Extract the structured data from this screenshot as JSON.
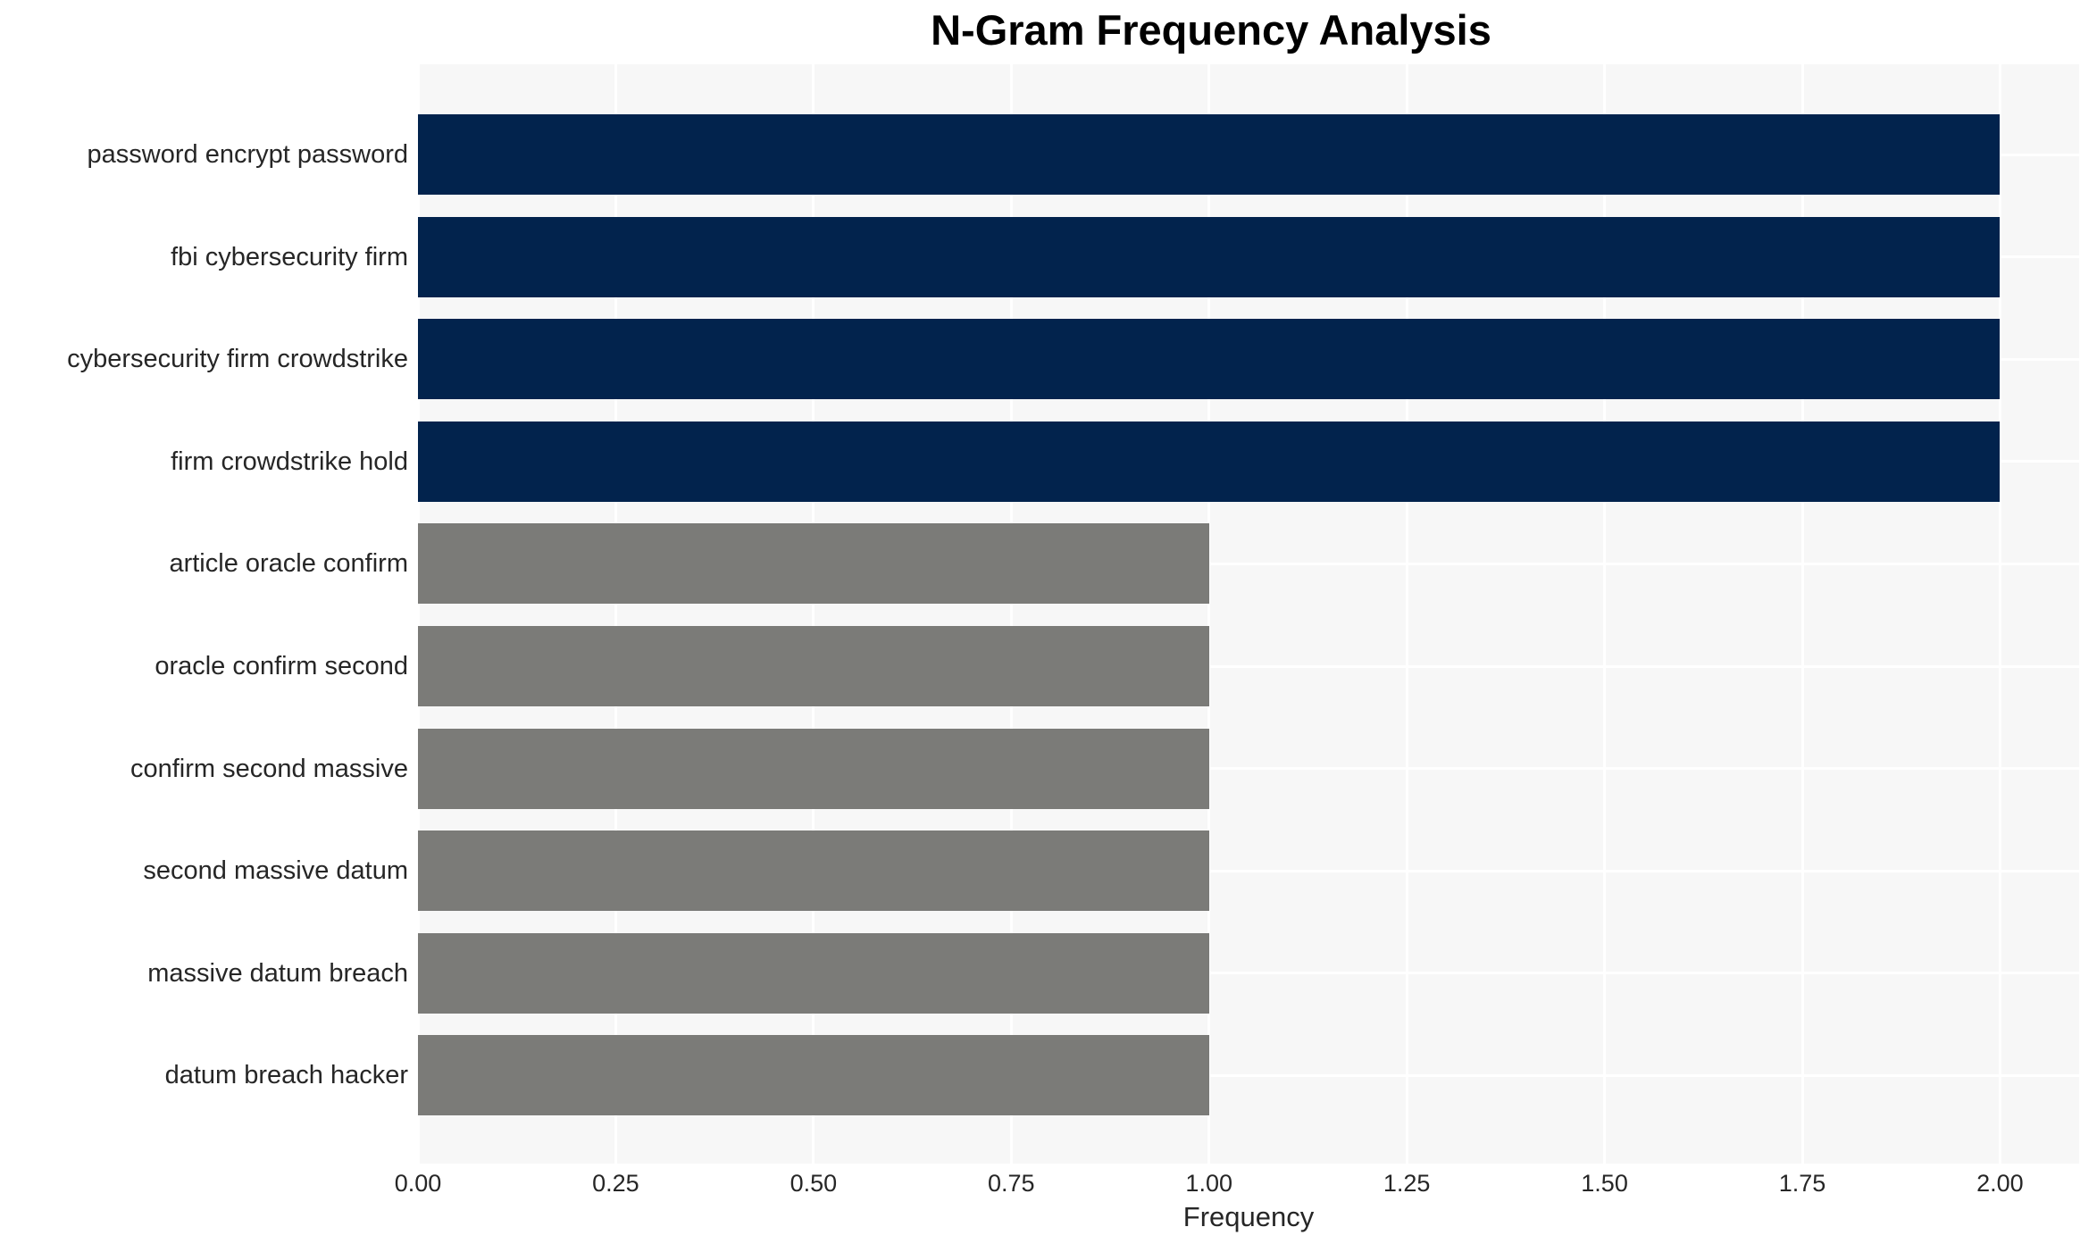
{
  "figure": {
    "background": "#ffffff",
    "text_color": "#262626",
    "title_color": "#000000"
  },
  "chart_data": {
    "type": "bar",
    "orientation": "horizontal",
    "title": "N-Gram Frequency Analysis",
    "xlabel": "Frequency",
    "ylabel": "",
    "categories": [
      "password encrypt password",
      "fbi cybersecurity firm",
      "cybersecurity firm crowdstrike",
      "firm crowdstrike hold",
      "article oracle confirm",
      "oracle confirm second",
      "confirm second massive",
      "second massive datum",
      "massive datum breach",
      "datum breach hacker"
    ],
    "values": [
      2,
      2,
      2,
      2,
      1,
      1,
      1,
      1,
      1,
      1
    ],
    "bar_colors": [
      "#02234d",
      "#02234d",
      "#02234d",
      "#02234d",
      "#7b7b78",
      "#7b7b78",
      "#7b7b78",
      "#7b7b78",
      "#7b7b78",
      "#7b7b78"
    ],
    "bar_color_highlight": "#02234d",
    "bar_color_default": "#7b7b78",
    "xlim": [
      0,
      2.1
    ],
    "xticks": [
      0,
      0.25,
      0.5,
      0.75,
      1.0,
      1.25,
      1.5,
      1.75,
      2.0
    ],
    "xtick_labels": [
      "0.00",
      "0.25",
      "0.50",
      "0.75",
      "1.00",
      "1.25",
      "1.50",
      "1.75",
      "2.00"
    ],
    "grid": true,
    "legend_position": "none",
    "panel_color": "#f7f7f7",
    "grid_color": "#ffffff"
  }
}
